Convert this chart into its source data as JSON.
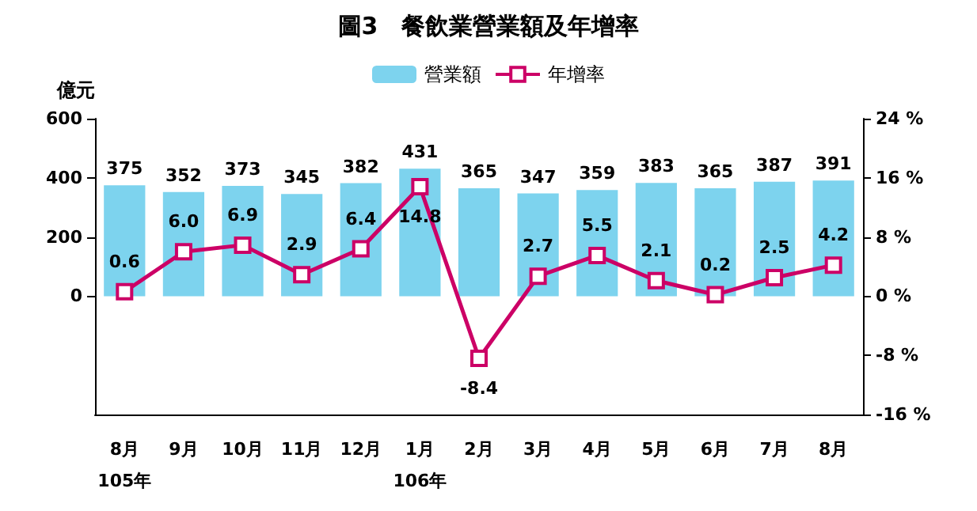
{
  "chart_data": {
    "type": "bar",
    "title": "圖3　餐飲業營業額及年增率",
    "ylabel": "億元",
    "categories": [
      "8月\n105年",
      "9月",
      "10月",
      "11月",
      "12月",
      "1月\n106年",
      "2月",
      "3月",
      "4月",
      "5月",
      "6月",
      "7月",
      "8月"
    ],
    "series": [
      {
        "name": "營業額",
        "color": "#7dd3ee",
        "values": [
          375,
          352,
          373,
          345,
          382,
          431,
          365,
          347,
          359,
          383,
          365,
          387,
          391
        ]
      },
      {
        "name": "年增率",
        "type": "line",
        "axis": "y2",
        "color": "#cc0066",
        "marker": "square",
        "values": [
          0.6,
          6.0,
          6.9,
          2.9,
          6.4,
          14.8,
          -8.4,
          2.7,
          5.5,
          2.1,
          0.2,
          2.5,
          4.2
        ],
        "value_labels": [
          "0.6",
          "6.0",
          "6.9",
          "2.9",
          "6.4",
          "14.8",
          "-8.4",
          "2.7",
          "5.5",
          "2.1",
          "0.2",
          "2.5",
          "4.2"
        ]
      }
    ],
    "ylim": [
      -400,
      600
    ],
    "yticks": [
      0,
      200,
      400,
      600
    ],
    "y2lim": [
      -16,
      24
    ],
    "y2ticks": [
      {
        "value": -16,
        "label": "-16 %"
      },
      {
        "value": -8,
        "label": "-8 %"
      },
      {
        "value": 0,
        "label": "0 %"
      },
      {
        "value": 8,
        "label": "8 %"
      },
      {
        "value": 16,
        "label": "16 %"
      },
      {
        "value": 24,
        "label": "24 %"
      }
    ],
    "data_labels": true,
    "legend": "top",
    "grid": false
  }
}
